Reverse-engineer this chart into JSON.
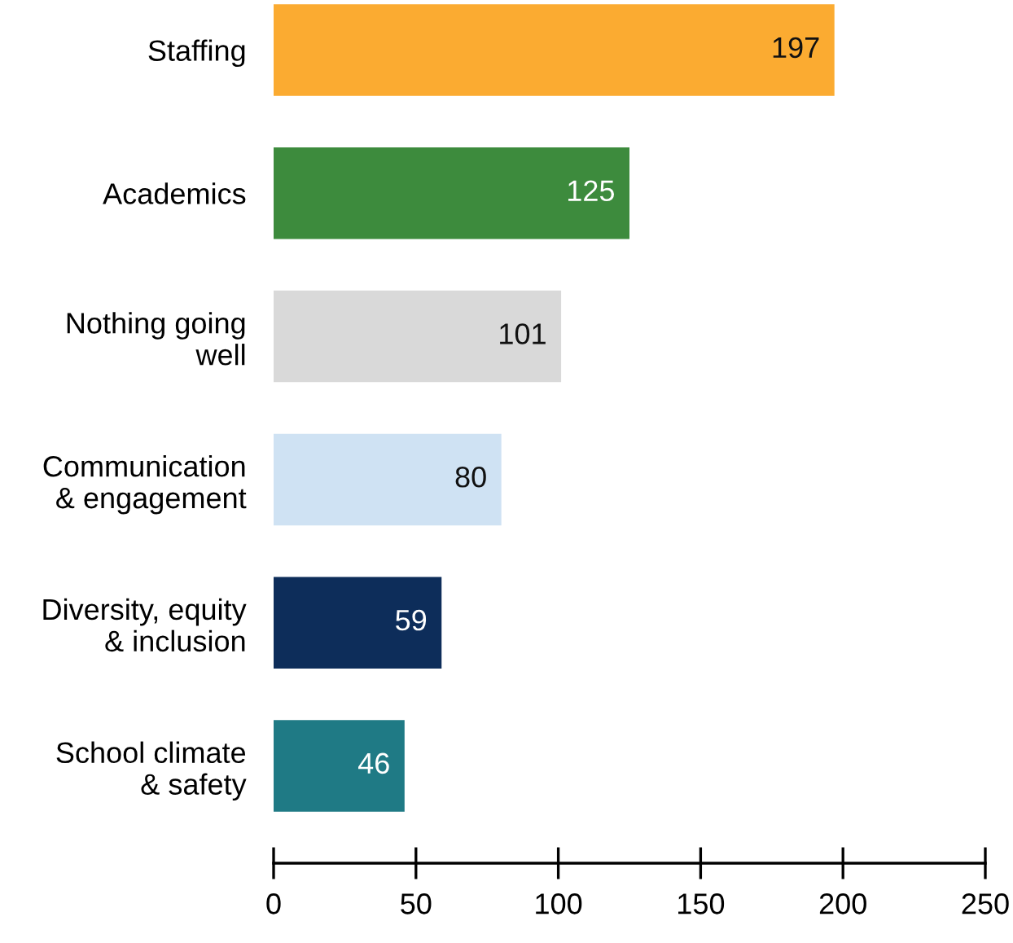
{
  "chart_data": {
    "type": "bar",
    "orientation": "horizontal",
    "categories": [
      "Staffing",
      "Academics",
      "Nothing going\nwell",
      "Communication\n& engagement",
      "Diversity, equity\n& inclusion",
      "School climate\n& safety"
    ],
    "values": [
      197,
      125,
      101,
      80,
      59,
      46
    ],
    "colors": [
      "#fbab31",
      "#3d8b3d",
      "#d9d9d9",
      "#cfe2f3",
      "#0d2d5a",
      "#1f7a85"
    ],
    "data_labels": true,
    "xlim": [
      0,
      250
    ],
    "xticks": [
      0,
      50,
      100,
      150,
      200,
      250
    ],
    "grid": false,
    "legend": false
  }
}
